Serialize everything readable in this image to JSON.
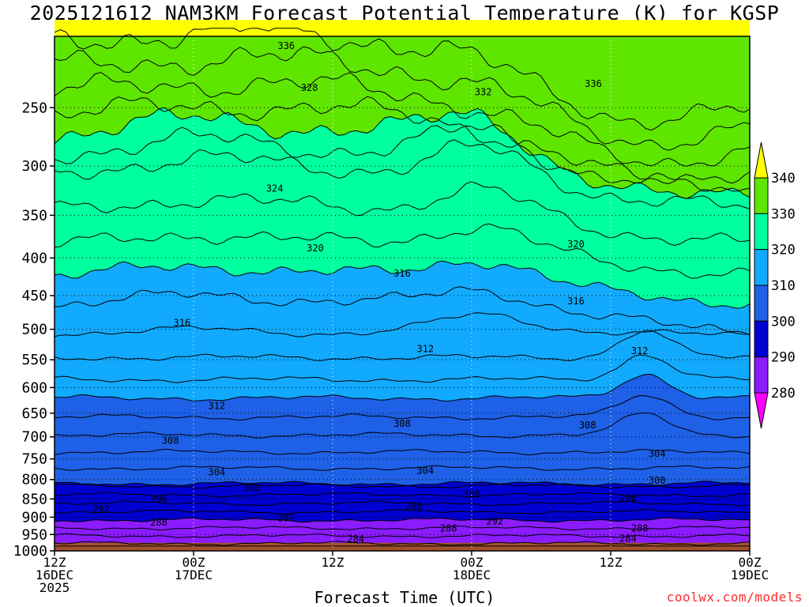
{
  "title": "2025121612 NAM3KM Forecast Potential Temperature (K) for KGSP",
  "xlabel": "Forecast Time (UTC)",
  "credit": "coolwx.com/models",
  "chart_data": {
    "type": "contour",
    "xlabel": "Forecast Time (UTC)",
    "x_ticks": [
      {
        "hour": 0,
        "line1": "12Z",
        "line2": "16DEC",
        "line3": "2025"
      },
      {
        "hour": 12,
        "line1": "00Z",
        "line2": "17DEC",
        "line3": ""
      },
      {
        "hour": 24,
        "line1": "12Z",
        "line2": "",
        "line3": ""
      },
      {
        "hour": 36,
        "line1": "00Z",
        "line2": "18DEC",
        "line3": ""
      },
      {
        "hour": 48,
        "line1": "12Z",
        "line2": "",
        "line3": ""
      },
      {
        "hour": 60,
        "line1": "00Z",
        "line2": "19DEC",
        "line3": ""
      }
    ],
    "x_range_hours": [
      0,
      60
    ],
    "y_ticks": [
      "250",
      "300",
      "350",
      "400",
      "450",
      "500",
      "550",
      "600",
      "650",
      "700",
      "750",
      "800",
      "850",
      "900",
      "950",
      "1000"
    ],
    "y_range_hpa": [
      200,
      1000
    ],
    "y_scale": "log-pressure",
    "colorbar": {
      "labels": [
        "280",
        "290",
        "300",
        "310",
        "320",
        "330",
        "340"
      ],
      "bands": [
        {
          "color": "#ff00ff"
        },
        {
          "color": "#8a1cff"
        },
        {
          "color": "#0000d0"
        },
        {
          "color": "#1e60e6"
        },
        {
          "color": "#11aaff"
        },
        {
          "color": "#00ff9f"
        },
        {
          "color": "#5fe600"
        },
        {
          "color": "#ffff00"
        }
      ]
    },
    "contour_labels": [
      {
        "text": "336",
        "hour": 20,
        "hpa": 206
      },
      {
        "text": "336",
        "hour": 46.5,
        "hpa": 232
      },
      {
        "text": "332",
        "hour": 37,
        "hpa": 238
      },
      {
        "text": "328",
        "hour": 22,
        "hpa": 235
      },
      {
        "text": "324",
        "hour": 19,
        "hpa": 322
      },
      {
        "text": "320",
        "hour": 22.5,
        "hpa": 388
      },
      {
        "text": "320",
        "hour": 45,
        "hpa": 383
      },
      {
        "text": "316",
        "hour": 11,
        "hpa": 490
      },
      {
        "text": "316",
        "hour": 30,
        "hpa": 420
      },
      {
        "text": "316",
        "hour": 45,
        "hpa": 458
      },
      {
        "text": "312",
        "hour": 32,
        "hpa": 532
      },
      {
        "text": "312",
        "hour": 50.5,
        "hpa": 535
      },
      {
        "text": "312",
        "hour": 14,
        "hpa": 635
      },
      {
        "text": "308",
        "hour": 10,
        "hpa": 708
      },
      {
        "text": "308",
        "hour": 30,
        "hpa": 672
      },
      {
        "text": "308",
        "hour": 46,
        "hpa": 675
      },
      {
        "text": "304",
        "hour": 14,
        "hpa": 782
      },
      {
        "text": "304",
        "hour": 32,
        "hpa": 778
      },
      {
        "text": "304",
        "hour": 52,
        "hpa": 738
      },
      {
        "text": "300",
        "hour": 17,
        "hpa": 822
      },
      {
        "text": "300",
        "hour": 36,
        "hpa": 838
      },
      {
        "text": "300",
        "hour": 52,
        "hpa": 802
      },
      {
        "text": "296",
        "hour": 9,
        "hpa": 850
      },
      {
        "text": "296",
        "hour": 31,
        "hpa": 870
      },
      {
        "text": "296",
        "hour": 49.5,
        "hpa": 848
      },
      {
        "text": "292",
        "hour": 4,
        "hpa": 878
      },
      {
        "text": "292",
        "hour": 20,
        "hpa": 902
      },
      {
        "text": "292",
        "hour": 38,
        "hpa": 912
      },
      {
        "text": "288",
        "hour": 9,
        "hpa": 915
      },
      {
        "text": "288",
        "hour": 34,
        "hpa": 932
      },
      {
        "text": "288",
        "hour": 50.5,
        "hpa": 932
      },
      {
        "text": "284",
        "hour": 26,
        "hpa": 964
      },
      {
        "text": "284",
        "hour": 49.5,
        "hpa": 962
      }
    ]
  }
}
